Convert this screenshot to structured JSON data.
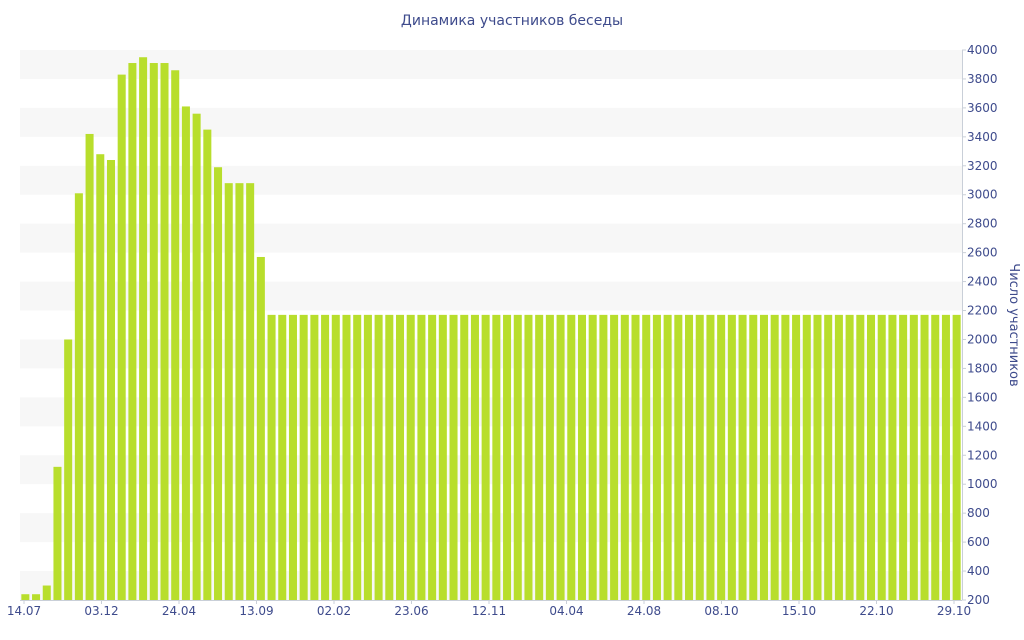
{
  "chart_data": {
    "type": "bar",
    "title": "Динамика участников беседы",
    "ylabel": "Число участников",
    "ylim": [
      200,
      4000
    ],
    "yticks": [
      200,
      400,
      600,
      800,
      1000,
      1200,
      1400,
      1600,
      1800,
      2000,
      2200,
      2400,
      2600,
      2800,
      3000,
      3200,
      3400,
      3600,
      3800,
      4000
    ],
    "y_axis_position": "right",
    "grid": "alternating horizontal bands",
    "xtick_labels": [
      "14.07",
      "03.12",
      "24.04",
      "13.09",
      "02.02",
      "23.06",
      "12.11",
      "04.04",
      "24.08",
      "08.10",
      "15.10",
      "22.10",
      "29.10"
    ],
    "values": [
      240,
      240,
      300,
      1120,
      2000,
      3010,
      3420,
      3280,
      3240,
      3830,
      3910,
      3950,
      3910,
      3910,
      3860,
      3610,
      3560,
      3450,
      3190,
      3080,
      3080,
      3080,
      2570,
      2170,
      2170,
      2170,
      2170,
      2170,
      2170,
      2170,
      2170,
      2170,
      2170,
      2170,
      2170,
      2170,
      2170,
      2170,
      2170,
      2170,
      2170,
      2170,
      2170,
      2170,
      2170,
      2170,
      2170,
      2170,
      2170,
      2170,
      2170,
      2170,
      2170,
      2170,
      2170,
      2170,
      2170,
      2170,
      2170,
      2170,
      2170,
      2170,
      2170,
      2170,
      2170,
      2170,
      2170,
      2170,
      2170,
      2170,
      2170,
      2170,
      2170,
      2170,
      2170,
      2170,
      2170,
      2170,
      2170,
      2170,
      2170,
      2170,
      2170,
      2170,
      2170,
      2170,
      2170,
      2170
    ],
    "colors": {
      "bar": "#b8de2c",
      "band": "#f7f7f7",
      "text": "#3e4b8c",
      "axis": "#c9cfd8"
    }
  }
}
